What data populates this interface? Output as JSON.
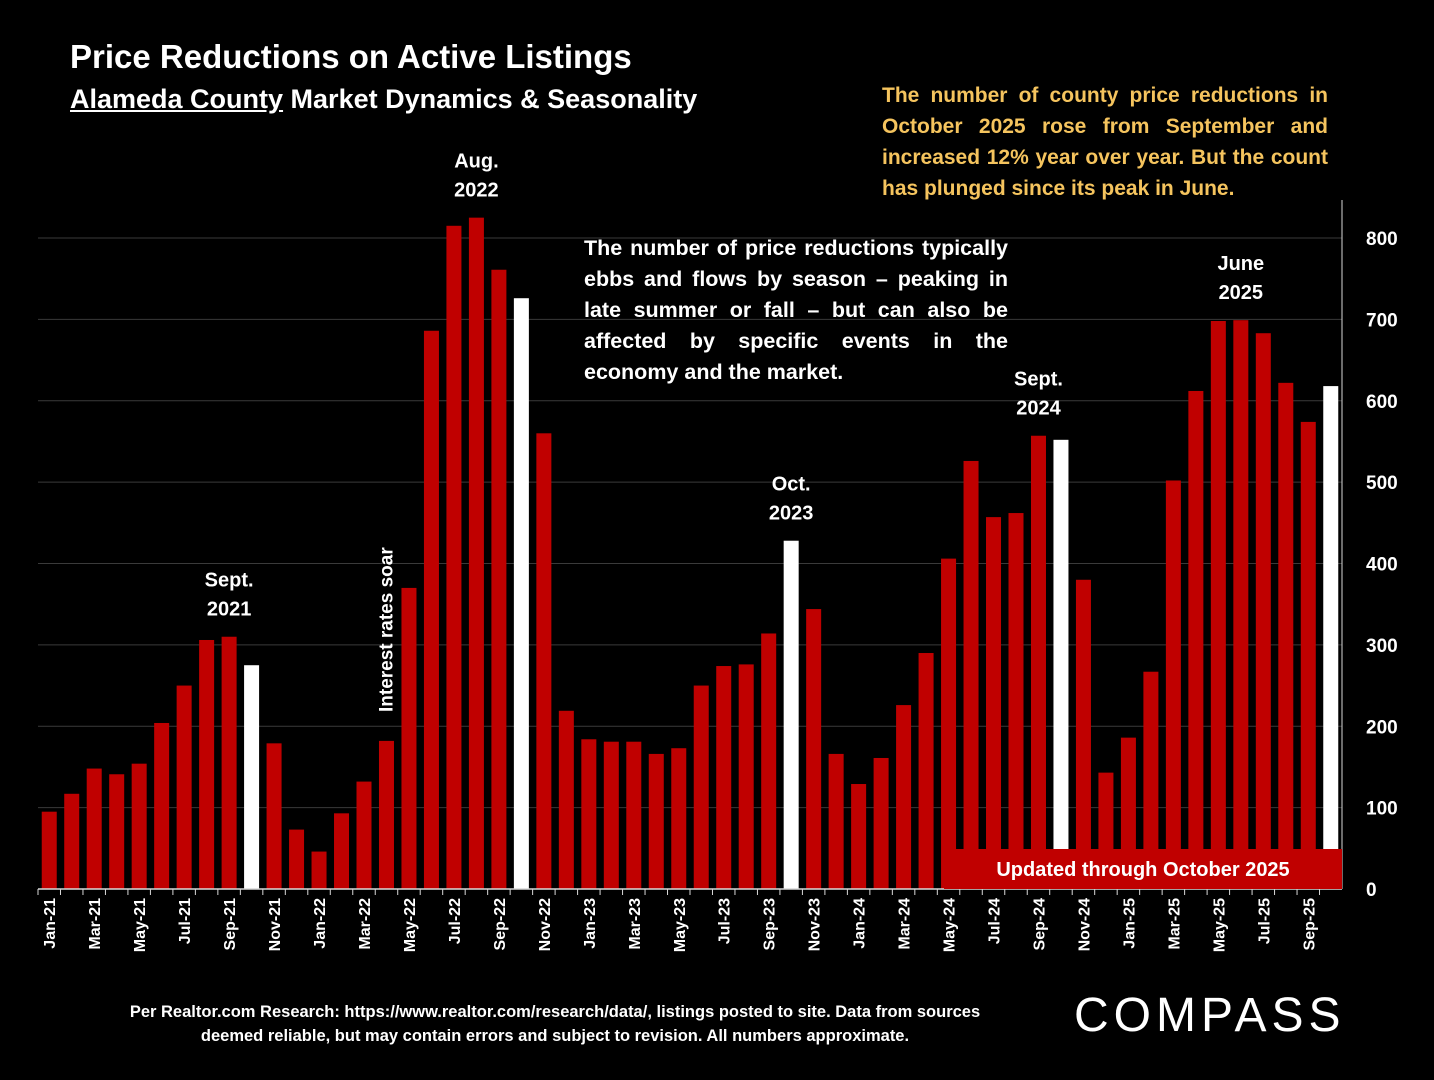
{
  "header": {
    "title": "Price Reductions on Active Listings",
    "subtitle_underlined": "Alameda County",
    "subtitle_rest": " Market Dynamics & Seasonality"
  },
  "callout": "The number of county price reductions in October 2025 rose from September and increased 12% year over year. But the count has plunged since its peak in June.",
  "note": "The number of price reductions typically ebbs and flows by season – peaking in late summer or fall – but can also be affected by specific events in the economy and the market.",
  "updated_banner": "Updated through October 2025",
  "footnote": "Per Realtor.com Research:  https://www.realtor.com/research/data/, listings posted to site. Data from sources deemed reliable, but may contain errors and subject to revision. All numbers approximate.",
  "logo": "COMPASS",
  "colors": {
    "bar": "#c00000",
    "highlight": "#ffffff",
    "grid": "#3a3a3a",
    "callout": "#f5c45e"
  },
  "chart_data": {
    "type": "bar",
    "title": "Price Reductions on Active Listings",
    "categories": [
      "Jan-21",
      "Feb-21",
      "Mar-21",
      "Apr-21",
      "May-21",
      "Jun-21",
      "Jul-21",
      "Aug-21",
      "Sep-21",
      "Oct-21",
      "Nov-21",
      "Dec-21",
      "Jan-22",
      "Feb-22",
      "Mar-22",
      "Apr-22",
      "May-22",
      "Jun-22",
      "Jul-22",
      "Aug-22",
      "Sep-22",
      "Oct-22",
      "Nov-22",
      "Dec-22",
      "Jan-23",
      "Feb-23",
      "Mar-23",
      "Apr-23",
      "May-23",
      "Jun-23",
      "Jul-23",
      "Aug-23",
      "Sep-23",
      "Oct-23",
      "Nov-23",
      "Dec-23",
      "Jan-24",
      "Feb-24",
      "Mar-24",
      "Apr-24",
      "May-24",
      "Jun-24",
      "Jul-24",
      "Aug-24",
      "Sep-24",
      "Oct-24",
      "Nov-24",
      "Dec-24",
      "Jan-25",
      "Feb-25",
      "Mar-25",
      "Apr-25",
      "May-25",
      "Jun-25",
      "Jul-25",
      "Aug-25",
      "Sep-25",
      "Oct-25"
    ],
    "tick_labels": [
      "Jan-21",
      "Mar-21",
      "May-21",
      "Jul-21",
      "Sep-21",
      "Nov-21",
      "Jan-22",
      "Mar-22",
      "May-22",
      "Jul-22",
      "Sep-22",
      "Nov-22",
      "Jan-23",
      "Mar-23",
      "May-23",
      "Jul-23",
      "Sep-23",
      "Nov-23",
      "Jan-24",
      "Mar-24",
      "May-24",
      "Jul-24",
      "Sep-24",
      "Nov-24",
      "Jan-25",
      "Mar-25",
      "May-25",
      "Jul-25",
      "Sep-25"
    ],
    "values": [
      95,
      117,
      148,
      141,
      154,
      204,
      250,
      306,
      310,
      275,
      179,
      73,
      46,
      93,
      132,
      182,
      370,
      686,
      815,
      825,
      761,
      726,
      560,
      219,
      184,
      181,
      181,
      166,
      173,
      250,
      274,
      276,
      314,
      428,
      344,
      166,
      129,
      161,
      226,
      290,
      406,
      526,
      457,
      462,
      557,
      552,
      380,
      143,
      186,
      267,
      502,
      612,
      698,
      699,
      683,
      622,
      574,
      618
    ],
    "highlight": [
      "Oct-21",
      "Oct-22",
      "Oct-23",
      "Oct-24",
      "Oct-25"
    ],
    "ylim": [
      0,
      850
    ],
    "yticks": [
      0,
      100,
      200,
      300,
      400,
      500,
      600,
      700,
      800
    ],
    "y_axis_side": "right",
    "grid": true,
    "annotations": [
      {
        "id": "sep2021",
        "line1": "Sept.",
        "line2": "2021",
        "at": "Sep-21"
      },
      {
        "id": "aug2022",
        "line1": "Aug.",
        "line2": "2022",
        "at": "Aug-22"
      },
      {
        "id": "oct2023",
        "line1": "Oct.",
        "line2": "2023",
        "at": "Oct-23"
      },
      {
        "id": "sep2024",
        "line1": "Sept.",
        "line2": "2024",
        "at": "Sep-24"
      },
      {
        "id": "jun2025",
        "line1": "June",
        "line2": "2025",
        "at": "Jun-25"
      },
      {
        "id": "rates",
        "text": "Interest rates soar",
        "at": "Apr-22"
      }
    ]
  }
}
